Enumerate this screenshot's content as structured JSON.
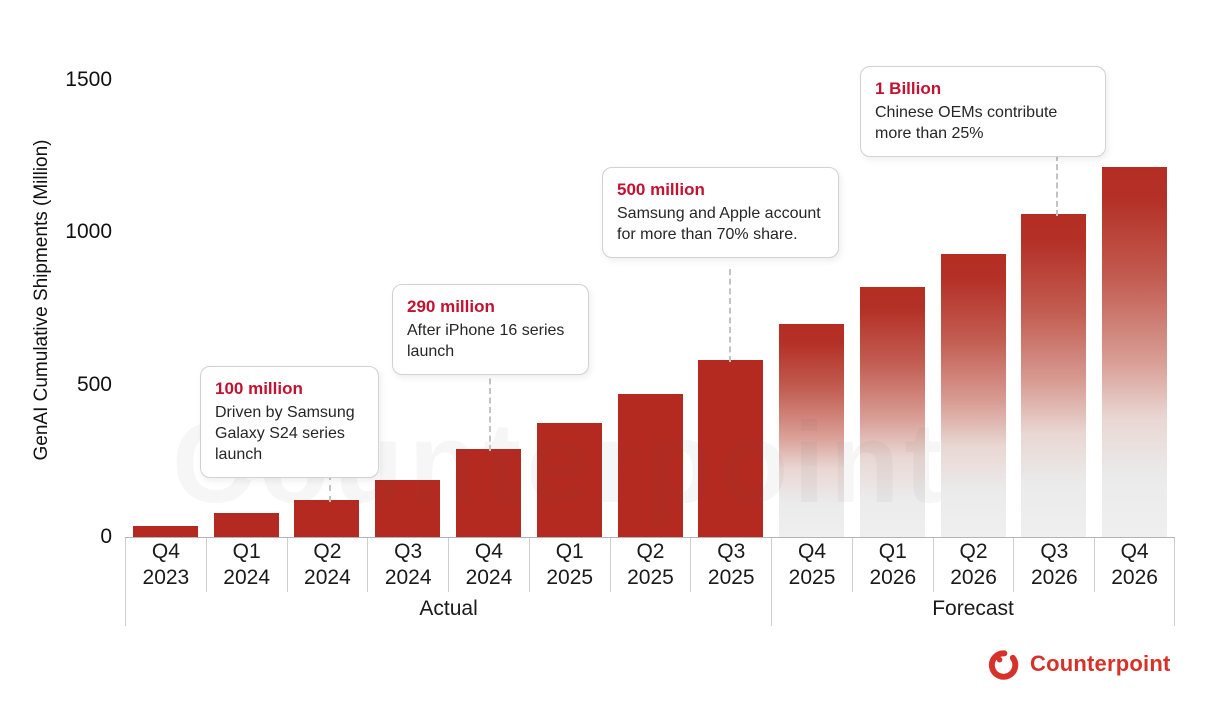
{
  "chart_data": {
    "type": "bar",
    "title": "",
    "xlabel": "",
    "ylabel": "GenAI Cumulative Shipments (Million)",
    "ylim": [
      0,
      1500
    ],
    "yticks": [
      0,
      500,
      1000,
      1500
    ],
    "grid": "off",
    "legend": "none",
    "categories": [
      "Q4 2023",
      "Q1 2024",
      "Q2 2024",
      "Q3 2024",
      "Q4 2024",
      "Q1 2025",
      "Q2 2025",
      "Q3 2025",
      "Q4 2025",
      "Q1 2026",
      "Q2 2026",
      "Q3 2026",
      "Q4 2026"
    ],
    "values": [
      37,
      80,
      122,
      187,
      290,
      375,
      470,
      580,
      700,
      820,
      930,
      1060,
      1215
    ],
    "segments": [
      {
        "label": "Actual",
        "count": 8
      },
      {
        "label": "Forecast",
        "count": 5
      }
    ],
    "bar_colors": {
      "actual": "#b52a20",
      "forecast_top": "#b42d23",
      "forecast_bottom": "#f0efef"
    },
    "annotations": [
      {
        "title": "100 million",
        "body": "Driven by Samsung Galaxy S24 series launch",
        "target_category": "Q2 2024"
      },
      {
        "title": "290 million",
        "body": "After iPhone 16 series launch",
        "target_category": "Q4 2024"
      },
      {
        "title": "500 million",
        "body": "Samsung and Apple account for more than 70% share.",
        "target_category": "Q3 2025"
      },
      {
        "title": "1 Billion",
        "body": "Chinese OEMs contribute more than 25%",
        "target_category": "Q3 2026"
      }
    ]
  },
  "colors": {
    "annotation_title": "#c31230",
    "logo_red": "#d63229",
    "axis_text": "#111111",
    "separator": "#cfcfcf"
  },
  "watermark": {
    "text": "Counterpoint"
  },
  "logo": {
    "text": "Counterpoint"
  }
}
